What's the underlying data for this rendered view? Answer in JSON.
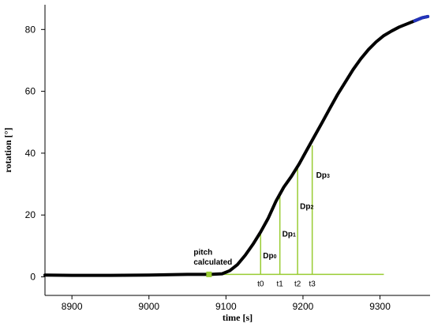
{
  "chart_data": {
    "type": "line",
    "xlabel": "time [s]",
    "ylabel": "rotation [°]",
    "xlim": [
      8865,
      9365
    ],
    "ylim": [
      -6,
      88
    ],
    "xticks": [
      8900,
      9000,
      9100,
      9200,
      9300
    ],
    "yticks": [
      0,
      20,
      40,
      60,
      80
    ],
    "grid": false,
    "series": [
      {
        "color": "#000000",
        "tail_color": "#2233bb",
        "x": [
          8865,
          8900,
          8950,
          9000,
          9050,
          9080,
          9095,
          9105,
          9115,
          9125,
          9135,
          9145,
          9155,
          9165,
          9175,
          9185,
          9195,
          9205,
          9215,
          9225,
          9235,
          9245,
          9255,
          9265,
          9275,
          9285,
          9295,
          9305,
          9315,
          9325,
          9335,
          9345,
          9355,
          9362
        ],
        "y": [
          0.6,
          0.5,
          0.5,
          0.6,
          0.8,
          0.8,
          1.0,
          2.0,
          4.0,
          7.0,
          10.5,
          14.5,
          19.0,
          24.5,
          29.0,
          32.5,
          36.5,
          41.0,
          45.5,
          50.0,
          54.5,
          59.0,
          63.0,
          67.0,
          70.5,
          73.5,
          76.0,
          78.0,
          79.5,
          80.8,
          81.8,
          82.8,
          83.8,
          84.2
        ]
      }
    ],
    "annotations": {
      "pitch_label_line1": "pitch",
      "pitch_label_line2": "calculated",
      "pitch_point": {
        "x": 9078,
        "y": 0.8
      },
      "baseline": {
        "y": 0.8,
        "x_start": 9065,
        "x_end": 9305
      },
      "markers": [
        {
          "label": "t0",
          "dp_main": "Dp",
          "dp_sub": "0",
          "x": 9145,
          "y_top": 14
        },
        {
          "label": "t1",
          "dp_main": "Dp",
          "dp_sub": "1",
          "x": 9170,
          "y_top": 27
        },
        {
          "label": "t2",
          "dp_main": "Dp",
          "dp_sub": "2",
          "x": 9193,
          "y_top": 35.5
        },
        {
          "label": "t3",
          "dp_main": "Dp",
          "dp_sub": "3",
          "x": 9212,
          "y_top": 42.5
        }
      ],
      "marker_color": "#99cc33"
    }
  }
}
